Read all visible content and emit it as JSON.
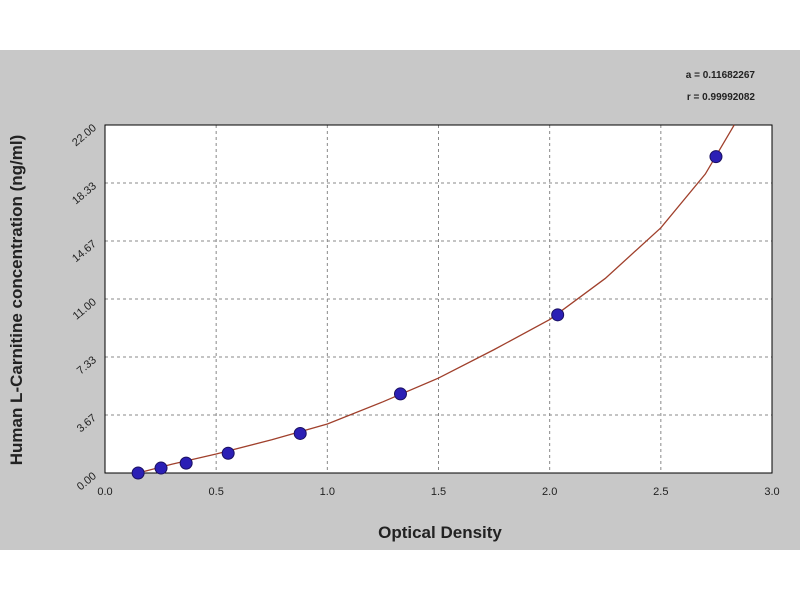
{
  "chart_data": {
    "type": "scatter",
    "x_label": "Optical Density",
    "y_label": "Human L-Carnitine concentration (ng/ml)",
    "annotations": [
      "a = 0.11682267",
      "r = 0.99992082"
    ],
    "xlim": [
      0,
      3
    ],
    "xticks": [
      {
        "value": 0,
        "label": "0.0"
      },
      {
        "value": 0.5,
        "label": "0.5"
      },
      {
        "value": 1,
        "label": "1.0"
      },
      {
        "value": 1.5,
        "label": "1.5"
      },
      {
        "value": 2,
        "label": "2.0"
      },
      {
        "value": 2.5,
        "label": "2.5"
      },
      {
        "value": 3,
        "label": "3.0"
      }
    ],
    "ylim": [
      0,
      22
    ],
    "yticks": [
      {
        "value": 0,
        "label": "0.00"
      },
      {
        "value": 3.67,
        "label": "3.67"
      },
      {
        "value": 7.33,
        "label": "7.33"
      },
      {
        "value": 11,
        "label": "11.00"
      },
      {
        "value": 14.67,
        "label": "14.67"
      },
      {
        "value": 18.33,
        "label": "18.33"
      },
      {
        "value": 22,
        "label": "22.00"
      }
    ],
    "grid": true,
    "points": {
      "color": "#2b1fb5",
      "x": [
        0.149,
        0.252,
        0.365,
        0.554,
        0.878,
        1.329,
        2.036,
        2.748
      ],
      "y": [
        0,
        0.3125,
        0.625,
        1.25,
        2.5,
        5,
        10,
        20
      ]
    },
    "fit": {
      "color": "#a0402c",
      "x": [
        0.149,
        0.3,
        0.5,
        0.75,
        1.0,
        1.25,
        1.5,
        1.75,
        2.0,
        2.25,
        2.5,
        2.7,
        2.83
      ],
      "y": [
        0,
        0.55,
        1.2,
        2.1,
        3.1,
        4.5,
        6.0,
        7.8,
        9.7,
        12.3,
        15.5,
        18.9,
        22
      ]
    }
  }
}
